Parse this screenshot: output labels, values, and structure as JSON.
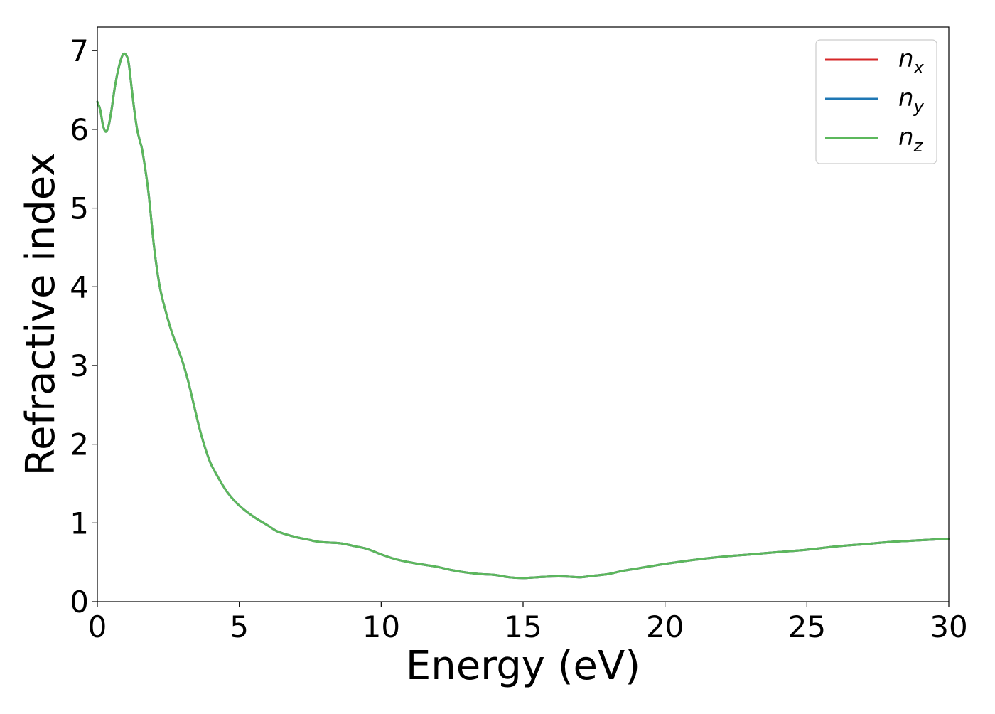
{
  "chart_data": {
    "type": "line",
    "title": "",
    "xlabel": "Energy (eV)",
    "ylabel": "Refractive index",
    "xlim": [
      0,
      30
    ],
    "ylim": [
      0,
      7.3
    ],
    "xticks": [
      0,
      5,
      10,
      15,
      20,
      25,
      30
    ],
    "yticks": [
      0,
      1,
      2,
      3,
      4,
      5,
      6,
      7
    ],
    "grid": false,
    "legend_position": "top-right",
    "series": [
      {
        "name": "n_x",
        "label_main": "n",
        "label_sub": "x",
        "color": "#d62728",
        "x": [
          0.0,
          0.1,
          0.2,
          0.3,
          0.4,
          0.5,
          0.6,
          0.7,
          0.8,
          0.9,
          1.0,
          1.1,
          1.2,
          1.3,
          1.4,
          1.5,
          1.6,
          1.8,
          2.0,
          2.2,
          2.4,
          2.6,
          2.8,
          3.0,
          3.2,
          3.4,
          3.6,
          3.8,
          4.0,
          4.3,
          4.6,
          5.0,
          5.5,
          6.0,
          6.3,
          6.6,
          7.0,
          7.4,
          7.8,
          8.2,
          8.6,
          9.0,
          9.5,
          10.0,
          10.5,
          11.0,
          11.5,
          12.0,
          12.5,
          13.0,
          13.5,
          14.0,
          14.5,
          15.0,
          15.5,
          16.0,
          16.5,
          17.0,
          17.5,
          18.0,
          18.5,
          19.0,
          19.5,
          20.0,
          21.0,
          22.0,
          23.0,
          24.0,
          25.0,
          26.0,
          27.0,
          28.0,
          29.0,
          30.0
        ],
        "y": [
          6.35,
          6.25,
          6.05,
          5.97,
          6.05,
          6.25,
          6.5,
          6.7,
          6.85,
          6.95,
          6.95,
          6.85,
          6.55,
          6.25,
          6.0,
          5.85,
          5.7,
          5.2,
          4.5,
          4.0,
          3.7,
          3.45,
          3.25,
          3.05,
          2.8,
          2.5,
          2.2,
          1.95,
          1.75,
          1.55,
          1.38,
          1.22,
          1.08,
          0.97,
          0.9,
          0.86,
          0.82,
          0.79,
          0.76,
          0.75,
          0.74,
          0.71,
          0.67,
          0.6,
          0.54,
          0.5,
          0.47,
          0.44,
          0.4,
          0.37,
          0.35,
          0.34,
          0.31,
          0.3,
          0.31,
          0.32,
          0.32,
          0.31,
          0.33,
          0.35,
          0.39,
          0.42,
          0.45,
          0.48,
          0.53,
          0.57,
          0.6,
          0.63,
          0.66,
          0.7,
          0.73,
          0.76,
          0.78,
          0.8
        ]
      },
      {
        "name": "n_y",
        "label_main": "n",
        "label_sub": "y",
        "color": "#1f77b4",
        "x": [
          0.0,
          0.1,
          0.2,
          0.3,
          0.4,
          0.5,
          0.6,
          0.7,
          0.8,
          0.9,
          1.0,
          1.1,
          1.2,
          1.3,
          1.4,
          1.5,
          1.6,
          1.8,
          2.0,
          2.2,
          2.4,
          2.6,
          2.8,
          3.0,
          3.2,
          3.4,
          3.6,
          3.8,
          4.0,
          4.3,
          4.6,
          5.0,
          5.5,
          6.0,
          6.3,
          6.6,
          7.0,
          7.4,
          7.8,
          8.2,
          8.6,
          9.0,
          9.5,
          10.0,
          10.5,
          11.0,
          11.5,
          12.0,
          12.5,
          13.0,
          13.5,
          14.0,
          14.5,
          15.0,
          15.5,
          16.0,
          16.5,
          17.0,
          17.5,
          18.0,
          18.5,
          19.0,
          19.5,
          20.0,
          21.0,
          22.0,
          23.0,
          24.0,
          25.0,
          26.0,
          27.0,
          28.0,
          29.0,
          30.0
        ],
        "y": [
          6.35,
          6.25,
          6.05,
          5.97,
          6.05,
          6.25,
          6.5,
          6.7,
          6.85,
          6.95,
          6.95,
          6.85,
          6.55,
          6.25,
          6.0,
          5.85,
          5.7,
          5.2,
          4.5,
          4.0,
          3.7,
          3.45,
          3.25,
          3.05,
          2.8,
          2.5,
          2.2,
          1.95,
          1.75,
          1.55,
          1.38,
          1.22,
          1.08,
          0.97,
          0.9,
          0.86,
          0.82,
          0.79,
          0.76,
          0.75,
          0.74,
          0.71,
          0.67,
          0.6,
          0.54,
          0.5,
          0.47,
          0.44,
          0.4,
          0.37,
          0.35,
          0.34,
          0.31,
          0.3,
          0.31,
          0.32,
          0.32,
          0.31,
          0.33,
          0.35,
          0.39,
          0.42,
          0.45,
          0.48,
          0.53,
          0.57,
          0.6,
          0.63,
          0.66,
          0.7,
          0.73,
          0.76,
          0.78,
          0.8
        ]
      },
      {
        "name": "n_z",
        "label_main": "n",
        "label_sub": "z",
        "color": "#5cb85c",
        "x": [
          0.0,
          0.1,
          0.2,
          0.3,
          0.4,
          0.5,
          0.6,
          0.7,
          0.8,
          0.9,
          1.0,
          1.1,
          1.2,
          1.3,
          1.4,
          1.5,
          1.6,
          1.8,
          2.0,
          2.2,
          2.4,
          2.6,
          2.8,
          3.0,
          3.2,
          3.4,
          3.6,
          3.8,
          4.0,
          4.3,
          4.6,
          5.0,
          5.5,
          6.0,
          6.3,
          6.6,
          7.0,
          7.4,
          7.8,
          8.2,
          8.6,
          9.0,
          9.5,
          10.0,
          10.5,
          11.0,
          11.5,
          12.0,
          12.5,
          13.0,
          13.5,
          14.0,
          14.5,
          15.0,
          15.5,
          16.0,
          16.5,
          17.0,
          17.5,
          18.0,
          18.5,
          19.0,
          19.5,
          20.0,
          21.0,
          22.0,
          23.0,
          24.0,
          25.0,
          26.0,
          27.0,
          28.0,
          29.0,
          30.0
        ],
        "y": [
          6.35,
          6.25,
          6.05,
          5.97,
          6.05,
          6.25,
          6.5,
          6.7,
          6.85,
          6.95,
          6.95,
          6.85,
          6.55,
          6.25,
          6.0,
          5.85,
          5.7,
          5.2,
          4.5,
          4.0,
          3.7,
          3.45,
          3.25,
          3.05,
          2.8,
          2.5,
          2.2,
          1.95,
          1.75,
          1.55,
          1.38,
          1.22,
          1.08,
          0.97,
          0.9,
          0.86,
          0.82,
          0.79,
          0.76,
          0.75,
          0.74,
          0.71,
          0.67,
          0.6,
          0.54,
          0.5,
          0.47,
          0.44,
          0.4,
          0.37,
          0.35,
          0.34,
          0.31,
          0.3,
          0.31,
          0.32,
          0.32,
          0.31,
          0.33,
          0.35,
          0.39,
          0.42,
          0.45,
          0.48,
          0.53,
          0.57,
          0.6,
          0.63,
          0.66,
          0.7,
          0.73,
          0.76,
          0.78,
          0.8
        ]
      }
    ]
  }
}
